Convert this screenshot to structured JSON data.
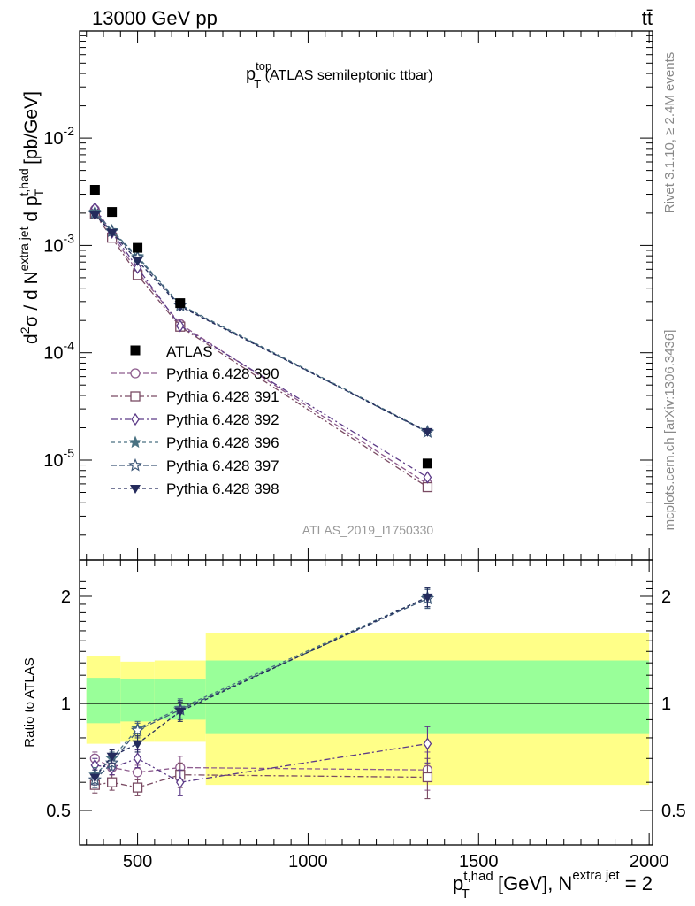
{
  "header": {
    "left": "13000 GeV pp",
    "right": "tt̄"
  },
  "side_labels": {
    "rivet": "Rivet 3.1.10, ≥ 2.4M events",
    "mcplots": "mcplots.cern.ch [arXiv:1306.3436]"
  },
  "watermark": "ATLAS_2019_I1750330",
  "chart_data": [
    {
      "type": "scatter",
      "panel": "main",
      "title": {
        "main": "p",
        "sup": "top",
        "sub": "T",
        "rest": " (ATLAS semileptonic ttbar)"
      },
      "ylabel": "d²σ / d N^{extra jet} d p_T^{t,had} [pb/GeV]",
      "yscale": "log",
      "xlim": [
        330,
        2010
      ],
      "ylim": [
        1.3e-06,
        0.1
      ],
      "y_tick_labels": [
        "10^{-5}",
        "10^{-4}",
        "10^{-3}",
        "10^{-2}"
      ],
      "legend_position": "middle-left",
      "x": [
        375,
        425,
        500,
        625,
        1350
      ],
      "data_series": {
        "name": "ATLAS",
        "values": [
          0.0033,
          0.00205,
          0.00095,
          0.00029,
          9.3e-06
        ]
      },
      "series": [
        {
          "name": "Pythia 6.428 390",
          "color": "#8e5c8e",
          "marker": "circle-open",
          "dash": "6,3",
          "values": [
            0.00215,
            0.00125,
            0.00057,
            0.000185,
            6e-06
          ]
        },
        {
          "name": "Pythia 6.428 391",
          "color": "#7a4b63",
          "marker": "square-open",
          "dash": "7,3,2,3",
          "values": [
            0.00195,
            0.00118,
            0.00053,
            0.000175,
            5.6e-06
          ]
        },
        {
          "name": "Pythia 6.428 392",
          "color": "#5c3a87",
          "marker": "diamond-open",
          "dash": "7,3,2,3",
          "values": [
            0.00222,
            0.00132,
            0.00062,
            0.000178,
            6.9e-06
          ]
        },
        {
          "name": "Pythia 6.428 396",
          "color": "#4a7282",
          "marker": "star-filled",
          "dash": "4,3",
          "values": [
            0.00205,
            0.00138,
            0.00079,
            0.00028,
            1.85e-05
          ]
        },
        {
          "name": "Pythia 6.428 397",
          "color": "#3e5878",
          "marker": "star-open",
          "dash": "6,3",
          "values": [
            0.00198,
            0.00135,
            0.00077,
            0.000275,
            1.82e-05
          ]
        },
        {
          "name": "Pythia 6.428 398",
          "color": "#242b5c",
          "marker": "triangle-down-filled",
          "dash": "4,3",
          "values": [
            0.00192,
            0.00132,
            0.00072,
            0.00027,
            1.84e-05
          ]
        }
      ]
    },
    {
      "type": "scatter",
      "panel": "ratio",
      "ylabel": "Ratio to ATLAS",
      "xlabel": "p_T^{t,had} [GeV], N^{extra jet} = 2",
      "xlim": [
        330,
        2010
      ],
      "ylim": [
        0.35,
        2.3
      ],
      "x_ticks": [
        500,
        1000,
        1500,
        2000
      ],
      "y_ticks": [
        0.5,
        1,
        2
      ],
      "bands": [
        {
          "x0": 350,
          "x1": 450,
          "stat_lo": 0.88,
          "stat_hi": 1.18,
          "tot_lo": 0.77,
          "tot_hi": 1.36
        },
        {
          "x0": 450,
          "x1": 550,
          "stat_lo": 0.89,
          "stat_hi": 1.17,
          "tot_lo": 0.78,
          "tot_hi": 1.31
        },
        {
          "x0": 550,
          "x1": 700,
          "stat_lo": 0.9,
          "stat_hi": 1.17,
          "tot_lo": 0.78,
          "tot_hi": 1.32
        },
        {
          "x0": 700,
          "x1": 2000,
          "stat_lo": 0.82,
          "stat_hi": 1.32,
          "tot_lo": 0.59,
          "tot_hi": 1.58
        }
      ],
      "series": [
        {
          "name": "Pythia 6.428 390",
          "values": [
            0.7,
            0.66,
            0.64,
            0.66,
            0.65
          ],
          "err": [
            0.03,
            0.03,
            0.03,
            0.05,
            0.08
          ]
        },
        {
          "name": "Pythia 6.428 391",
          "values": [
            0.59,
            0.6,
            0.58,
            0.63,
            0.62
          ],
          "err": [
            0.03,
            0.03,
            0.03,
            0.05,
            0.08
          ]
        },
        {
          "name": "Pythia 6.428 392",
          "values": [
            0.67,
            0.66,
            0.7,
            0.6,
            0.77
          ],
          "err": [
            0.03,
            0.03,
            0.04,
            0.05,
            0.09
          ]
        },
        {
          "name": "Pythia 6.428 396",
          "values": [
            0.63,
            0.7,
            0.85,
            0.97,
            1.99
          ],
          "err": [
            0.03,
            0.03,
            0.04,
            0.06,
            0.12
          ]
        },
        {
          "name": "Pythia 6.428 397",
          "values": [
            0.61,
            0.68,
            0.84,
            0.96,
            1.97
          ],
          "err": [
            0.03,
            0.03,
            0.04,
            0.06,
            0.12
          ]
        },
        {
          "name": "Pythia 6.428 398",
          "values": [
            0.62,
            0.71,
            0.77,
            0.95,
            1.99
          ],
          "err": [
            0.03,
            0.03,
            0.04,
            0.06,
            0.12
          ]
        }
      ]
    }
  ]
}
